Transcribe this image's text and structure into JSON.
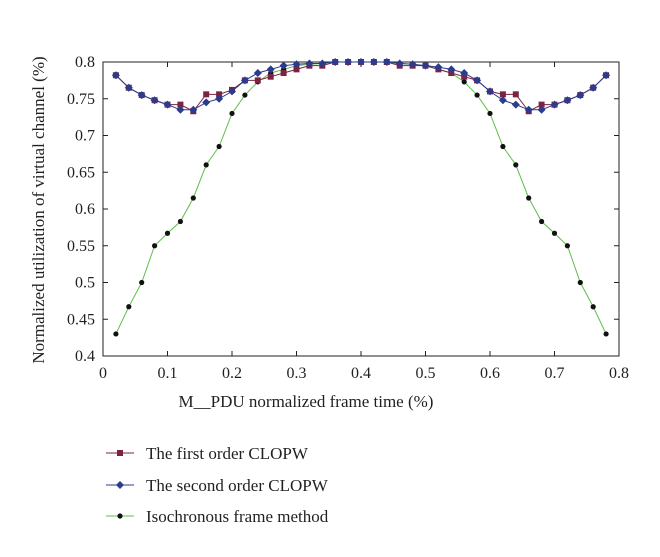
{
  "chart_data": {
    "type": "line",
    "title": "",
    "xlabel": "M__PDU normalized frame time (%)",
    "ylabel": "Normalized utilization of virtual channel (%)",
    "xlim": [
      0,
      0.8
    ],
    "ylim": [
      0.4,
      0.8
    ],
    "xticks": [
      "0",
      "0.1",
      "0.2",
      "0.3",
      "0.4",
      "0.5",
      "0.6",
      "0.7",
      "0.8"
    ],
    "yticks": [
      "0.4",
      "0.45",
      "0.5",
      "0.55",
      "0.6",
      "0.65",
      "0.7",
      "0.75",
      "0.8"
    ],
    "grid": false,
    "legend_position": "bottom",
    "x": [
      0.02,
      0.04,
      0.06,
      0.08,
      0.1,
      0.12,
      0.14,
      0.16,
      0.18,
      0.2,
      0.22,
      0.24,
      0.26,
      0.28,
      0.3,
      0.32,
      0.34,
      0.36,
      0.38,
      0.4,
      0.42,
      0.44,
      0.46,
      0.48,
      0.5,
      0.52,
      0.54,
      0.56,
      0.58,
      0.6,
      0.62,
      0.64,
      0.66,
      0.68,
      0.7,
      0.72,
      0.74,
      0.76,
      0.78
    ],
    "series": [
      {
        "name": "The first order CLOPW",
        "color": "#7b2340",
        "marker": "square",
        "values": [
          0.782,
          0.765,
          0.755,
          0.748,
          0.742,
          0.742,
          0.733,
          0.756,
          0.756,
          0.762,
          0.775,
          0.775,
          0.78,
          0.785,
          0.79,
          0.795,
          0.795,
          0.8,
          0.8,
          0.8,
          0.8,
          0.8,
          0.795,
          0.795,
          0.795,
          0.79,
          0.785,
          0.78,
          0.775,
          0.76,
          0.756,
          0.756,
          0.733,
          0.742,
          0.742,
          0.748,
          0.755,
          0.765,
          0.782
        ]
      },
      {
        "name": "The second order CLOPW",
        "color": "#2b3c8f",
        "marker": "diamond",
        "values": [
          0.782,
          0.765,
          0.755,
          0.748,
          0.742,
          0.735,
          0.735,
          0.745,
          0.75,
          0.76,
          0.775,
          0.785,
          0.79,
          0.795,
          0.797,
          0.798,
          0.798,
          0.8,
          0.8,
          0.8,
          0.8,
          0.8,
          0.798,
          0.797,
          0.795,
          0.793,
          0.79,
          0.785,
          0.775,
          0.76,
          0.748,
          0.742,
          0.735,
          0.735,
          0.742,
          0.748,
          0.755,
          0.765,
          0.782
        ]
      },
      {
        "name": "Isochronous frame method",
        "color": "#5fbf4a",
        "marker": "circle",
        "values": [
          0.43,
          0.467,
          0.5,
          0.55,
          0.567,
          0.583,
          0.615,
          0.66,
          0.685,
          0.73,
          0.755,
          0.773,
          0.785,
          0.79,
          0.795,
          0.797,
          0.798,
          0.8,
          0.8,
          0.8,
          0.8,
          0.8,
          0.798,
          0.797,
          0.795,
          0.79,
          0.785,
          0.773,
          0.755,
          0.73,
          0.685,
          0.66,
          0.615,
          0.583,
          0.567,
          0.55,
          0.5,
          0.467,
          0.43
        ]
      }
    ]
  }
}
